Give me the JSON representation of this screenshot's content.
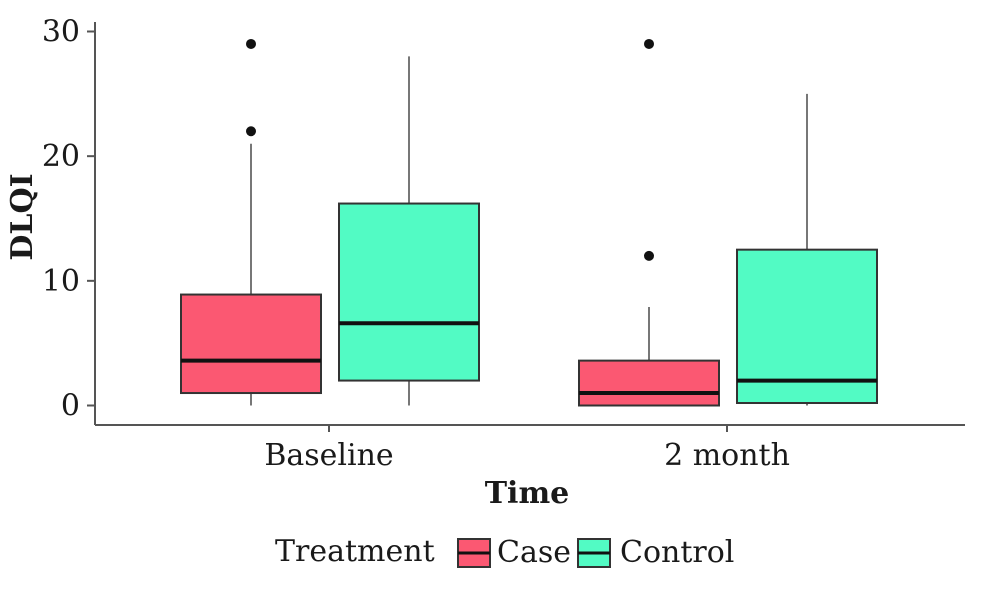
{
  "chart_data": {
    "type": "boxplot",
    "xlabel": "Time",
    "ylabel": "DLQI",
    "ylim": [
      -1.9,
      31
    ],
    "y_ticks": [
      0,
      10,
      20,
      30
    ],
    "categories": [
      "Baseline",
      "2 month"
    ],
    "grid": false,
    "legend": {
      "title": "Treatment",
      "placement": "bottom",
      "entries": [
        "Case",
        "Control"
      ]
    },
    "series": [
      {
        "name": "Case",
        "color": "#fb5872",
        "boxes": [
          {
            "category": "Baseline",
            "whisker_low": 0,
            "q1": 1,
            "median": 3.6,
            "q3": 8.9,
            "whisker_high": 21,
            "outliers": [
              22,
              29
            ]
          },
          {
            "category": "2 month",
            "whisker_low": 0,
            "q1": 0,
            "median": 1,
            "q3": 3.6,
            "whisker_high": 7.9,
            "outliers": [
              12,
              29
            ]
          }
        ]
      },
      {
        "name": "Control",
        "color": "#52fbc4",
        "boxes": [
          {
            "category": "Baseline",
            "whisker_low": 0,
            "q1": 2,
            "median": 6.6,
            "q3": 16.2,
            "whisker_high": 28,
            "outliers": []
          },
          {
            "category": "2 month",
            "whisker_low": 0,
            "q1": 0.2,
            "median": 2,
            "q3": 12.5,
            "whisker_high": 25,
            "outliers": []
          }
        ]
      }
    ]
  }
}
